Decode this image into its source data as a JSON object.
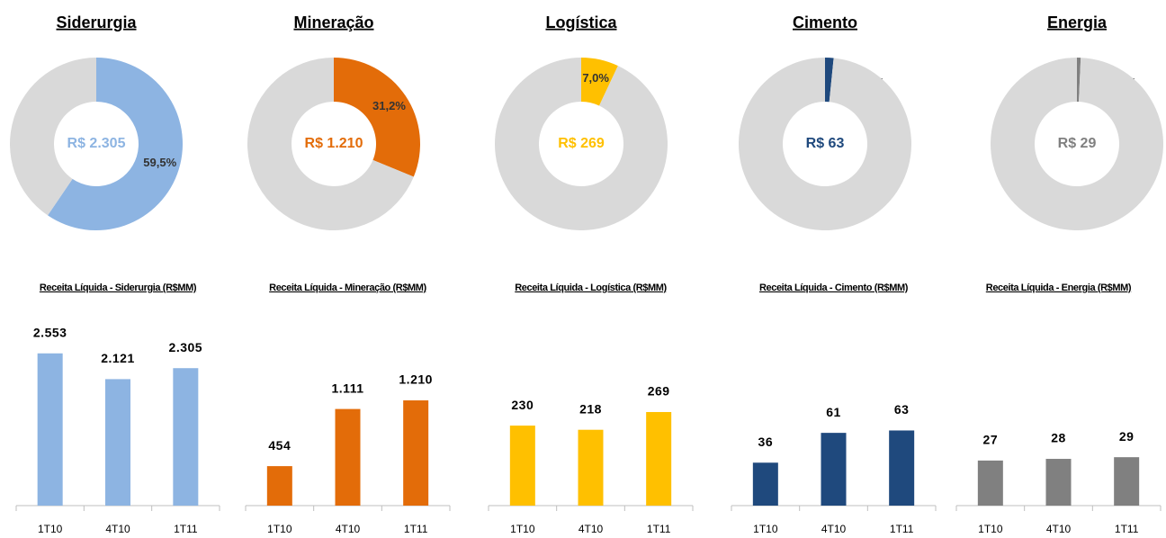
{
  "chart_data": [
    {
      "type": "donut",
      "title": "Siderurgia",
      "center_label": "R$ 2.305",
      "values": [
        59.5,
        40.5
      ],
      "value_labels": [
        "59,5%",
        null
      ],
      "colors": [
        "#8db4e2",
        "#d9d9d9"
      ]
    },
    {
      "type": "donut",
      "title": "Mineração",
      "center_label": "R$ 1.210",
      "values": [
        31.2,
        68.8
      ],
      "value_labels": [
        "31,2%",
        null
      ],
      "colors": [
        "#e36c09",
        "#d9d9d9"
      ]
    },
    {
      "type": "donut",
      "title": "Logística",
      "center_label": "R$ 269",
      "values": [
        7.0,
        93.0
      ],
      "value_labels": [
        "7,0%",
        null
      ],
      "colors": [
        "#ffc000",
        "#d9d9d9"
      ]
    },
    {
      "type": "donut",
      "title": "Cimento",
      "center_label": "R$ 63",
      "values": [
        1.6,
        98.4
      ],
      "value_labels": [
        "1,6%",
        null
      ],
      "colors": [
        "#1f497d",
        "#d9d9d9"
      ]
    },
    {
      "type": "donut",
      "title": "Energia",
      "center_label": "R$ 29",
      "values": [
        0.7,
        99.3
      ],
      "value_labels": [
        "0,7%",
        null
      ],
      "colors": [
        "#808080",
        "#d9d9d9"
      ]
    },
    {
      "type": "bar",
      "title": "Receita Líquida - Siderurgia (R$MM)",
      "categories": [
        "1T10",
        "4T10",
        "1T11"
      ],
      "values": [
        2553,
        2121,
        2305
      ],
      "value_labels": [
        "2.553",
        "2.121",
        "2.305"
      ],
      "color": "#8db4e2",
      "ylim": [
        0,
        3500
      ]
    },
    {
      "type": "bar",
      "title": "Receita Líquida - Mineração (R$MM)",
      "categories": [
        "1T10",
        "4T10",
        "1T11"
      ],
      "values": [
        454,
        1111,
        1210
      ],
      "value_labels": [
        "454",
        "1.111",
        "1.210"
      ],
      "color": "#e36c09",
      "ylim": [
        0,
        2400
      ]
    },
    {
      "type": "bar",
      "title": "Receita Líquida - Logística (R$MM)",
      "categories": [
        "1T10",
        "4T10",
        "1T11"
      ],
      "values": [
        230,
        218,
        269
      ],
      "color": "#ffc000",
      "ylim": [
        0,
        600
      ]
    },
    {
      "type": "bar",
      "title": "Receita Líquida - Cimento (R$MM)",
      "categories": [
        "1T10",
        "4T10",
        "1T11"
      ],
      "values": [
        36,
        61,
        63
      ],
      "color": "#1f497d",
      "ylim": [
        0,
        175
      ]
    },
    {
      "type": "bar",
      "title": "Receita Líquida - Energia (R$MM)",
      "categories": [
        "1T10",
        "4T10",
        "1T11"
      ],
      "values": [
        27,
        28,
        29
      ],
      "color": "#808080",
      "ylim": [
        0,
        125
      ]
    }
  ]
}
